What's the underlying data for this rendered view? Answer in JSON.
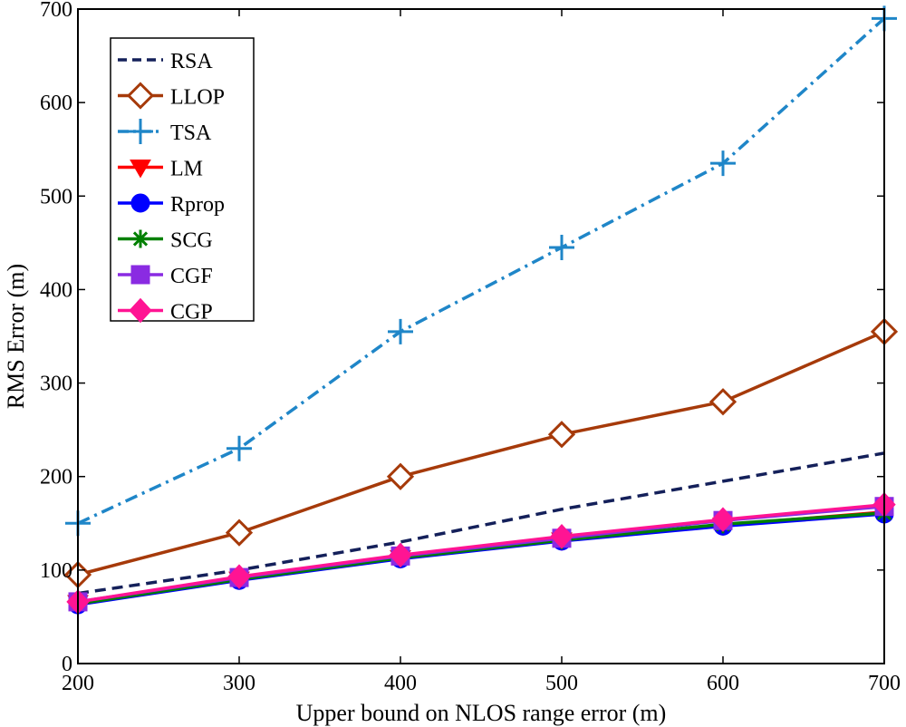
{
  "chart_data": {
    "type": "line",
    "title": "",
    "xlabel": "Upper bound on NLOS range error (m)",
    "ylabel": "RMS Error (m)",
    "x": [
      200,
      300,
      400,
      500,
      600,
      700
    ],
    "xlim": [
      200,
      700
    ],
    "ylim": [
      0,
      700
    ],
    "xticks": [
      200,
      300,
      400,
      500,
      600,
      700
    ],
    "yticks": [
      0,
      100,
      200,
      300,
      400,
      500,
      600,
      700
    ],
    "grid": false,
    "legend_position": "top-left",
    "series": [
      {
        "name": "RSA",
        "values": [
          75,
          100,
          130,
          165,
          195,
          225
        ],
        "color": "#14205a",
        "dash": "dashed",
        "marker": "none"
      },
      {
        "name": "LLOP",
        "values": [
          95,
          140,
          200,
          245,
          280,
          355
        ],
        "color": "#a63a0a",
        "dash": "solid",
        "marker": "diamond-open"
      },
      {
        "name": "TSA",
        "values": [
          150,
          230,
          355,
          445,
          535,
          690
        ],
        "color": "#1f86c8",
        "dash": "dashdot",
        "marker": "plus"
      },
      {
        "name": "LM",
        "values": [
          65,
          90,
          113,
          132,
          148,
          162
        ],
        "color": "#ff0000",
        "dash": "solid",
        "marker": "triangle-down"
      },
      {
        "name": "Rprop",
        "values": [
          63,
          89,
          112,
          131,
          147,
          160
        ],
        "color": "#0000ff",
        "dash": "solid",
        "marker": "circle"
      },
      {
        "name": "SCG",
        "values": [
          64,
          90,
          113,
          132,
          149,
          161
        ],
        "color": "#008000",
        "dash": "solid",
        "marker": "asterisk"
      },
      {
        "name": "CGF",
        "values": [
          66,
          92,
          115,
          134,
          153,
          168
        ],
        "color": "#8a2be2",
        "dash": "solid",
        "marker": "square"
      },
      {
        "name": "CGP",
        "values": [
          66,
          93,
          116,
          136,
          154,
          170
        ],
        "color": "#ff1493",
        "dash": "solid",
        "marker": "diamond"
      }
    ]
  }
}
